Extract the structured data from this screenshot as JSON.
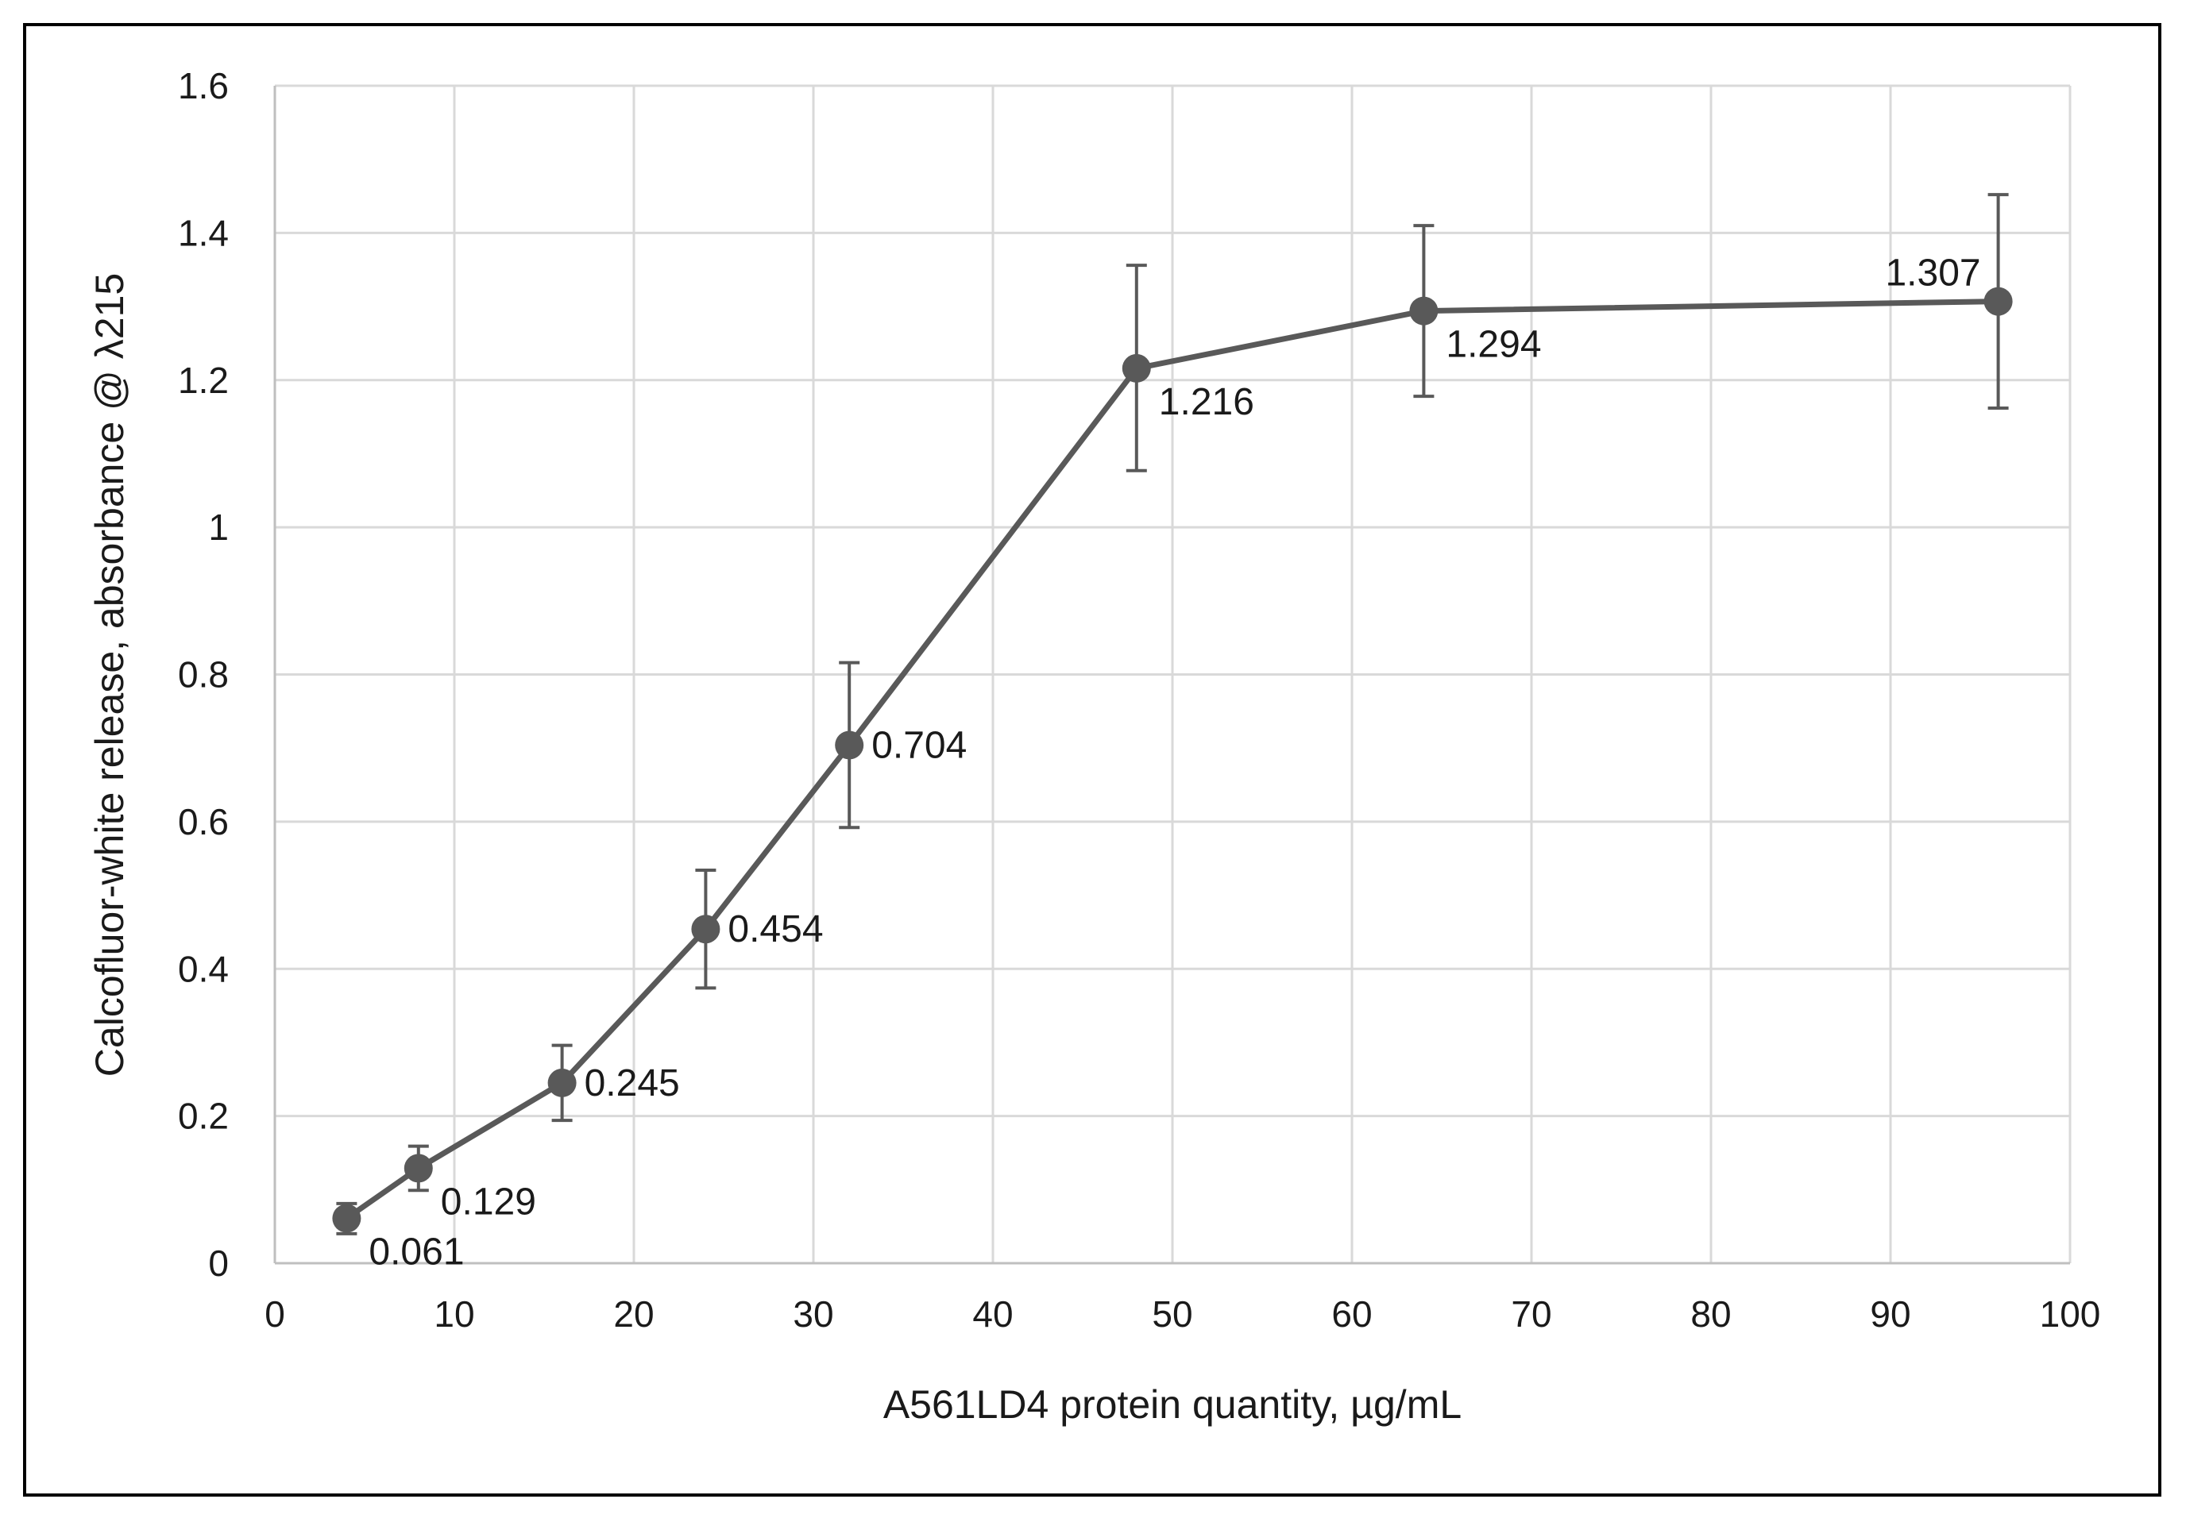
{
  "chart_data": {
    "type": "line",
    "title": "",
    "xlabel": "A561LD4 protein quantity,  µg/mL",
    "ylabel": "Calcofluor-white release, absorbance @ λ215",
    "xlim": [
      0,
      100
    ],
    "ylim": [
      0,
      1.6
    ],
    "x_ticks": [
      0,
      10,
      20,
      30,
      40,
      50,
      60,
      70,
      80,
      90,
      100
    ],
    "y_ticks": [
      0,
      0.2,
      0.4,
      0.6,
      0.8,
      1,
      1.2,
      1.4,
      1.6
    ],
    "x_tick_labels": [
      "0",
      "10",
      "20",
      "30",
      "40",
      "50",
      "60",
      "70",
      "80",
      "90",
      "100"
    ],
    "y_tick_labels": [
      "0",
      "0.2",
      "0.4",
      "0.6",
      "0.8",
      "1",
      "1.2",
      "1.4",
      "1.6"
    ],
    "grid": true,
    "legend": "none",
    "series": [
      {
        "x": [
          4,
          8,
          16,
          24,
          32,
          48,
          64,
          96
        ],
        "values": [
          0.061,
          0.129,
          0.245,
          0.454,
          0.704,
          1.216,
          1.294,
          1.307
        ],
        "error_low": [
          0.04,
          0.099,
          0.194,
          0.374,
          0.592,
          1.077,
          1.178,
          1.162
        ],
        "error_high": [
          0.081,
          0.159,
          0.296,
          0.534,
          0.816,
          1.356,
          1.41,
          1.452
        ],
        "data_labels": [
          "0.061",
          "0.129",
          "0.245",
          "0.454",
          "0.704",
          "1.216",
          "1.294",
          "1.307"
        ],
        "label_positions": [
          "below-right",
          "below-right",
          "right",
          "right",
          "right",
          "below-right",
          "below-right",
          "above-left"
        ],
        "color": "#595959"
      }
    ],
    "colors": {
      "line": "#595959",
      "grid": "#d9d9d9",
      "axis": "#bfbfbf",
      "frame": "#000000"
    }
  }
}
